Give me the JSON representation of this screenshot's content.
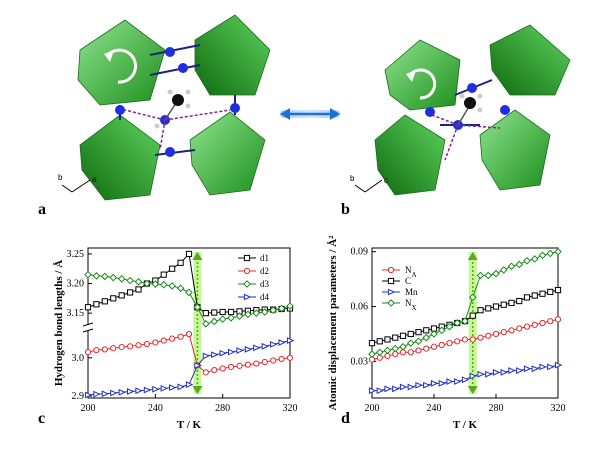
{
  "panels": {
    "a": "a",
    "b": "b",
    "c": "c",
    "d": "d"
  },
  "structure": {
    "axes_a": {
      "b": "b",
      "a": "a"
    },
    "axes_b": {
      "b": "b",
      "c": "c"
    }
  },
  "chart_data": [
    {
      "type": "line",
      "xlabel": "T / K",
      "ylabel": "Hydrogen bond lengths / Å",
      "xlim": [
        200,
        320
      ],
      "xticks": [
        "200",
        "240",
        "280",
        "320"
      ],
      "yticks_upper": [
        "3.15",
        "3.20",
        "3.25"
      ],
      "yticks_lower": [
        "2.9",
        "3.0"
      ],
      "broken_axis": true,
      "series": [
        {
          "name": "d1",
          "color": "#000000",
          "marker": "square",
          "x": [
            200,
            205,
            210,
            215,
            220,
            225,
            230,
            235,
            240,
            245,
            250,
            255,
            260,
            265,
            270,
            275,
            280,
            285,
            290,
            295,
            300,
            305,
            310,
            315,
            320
          ],
          "y": [
            3.16,
            3.165,
            3.17,
            3.175,
            3.18,
            3.185,
            3.19,
            3.2,
            3.205,
            3.215,
            3.225,
            3.235,
            3.25,
            3.16,
            3.15,
            3.151,
            3.152,
            3.152,
            3.153,
            3.154,
            3.155,
            3.156,
            3.156,
            3.157,
            3.158
          ]
        },
        {
          "name": "d2",
          "color": "#e8262a",
          "marker": "circle",
          "x": [
            200,
            205,
            210,
            215,
            220,
            225,
            230,
            235,
            240,
            245,
            250,
            255,
            260,
            265,
            270,
            275,
            280,
            285,
            290,
            295,
            300,
            305,
            310,
            315,
            320
          ],
          "y": [
            3.015,
            3.02,
            3.022,
            3.025,
            3.028,
            3.03,
            3.033,
            3.036,
            3.04,
            3.045,
            3.05,
            3.055,
            3.062,
            2.98,
            2.962,
            2.968,
            2.972,
            2.976,
            2.979,
            2.982,
            2.985,
            2.989,
            2.993,
            2.997,
            3.0
          ]
        },
        {
          "name": "d3",
          "color": "#1a8a1a",
          "marker": "diamond",
          "x": [
            200,
            205,
            210,
            215,
            220,
            225,
            230,
            235,
            240,
            245,
            250,
            255,
            260,
            265,
            270,
            275,
            280,
            285,
            290,
            295,
            300,
            305,
            310,
            315,
            320
          ],
          "y": [
            3.215,
            3.213,
            3.212,
            3.21,
            3.208,
            3.205,
            3.203,
            3.2,
            3.199,
            3.198,
            3.196,
            3.192,
            3.185,
            3.16,
            3.132,
            3.136,
            3.14,
            3.142,
            3.145,
            3.148,
            3.15,
            3.152,
            3.155,
            3.158,
            3.162
          ]
        },
        {
          "name": "d4",
          "color": "#1f2fbf",
          "marker": "triangle",
          "x": [
            200,
            205,
            210,
            215,
            220,
            225,
            230,
            235,
            240,
            245,
            250,
            255,
            260,
            265,
            270,
            275,
            280,
            285,
            290,
            295,
            300,
            305,
            310,
            315,
            320
          ],
          "y": [
            2.903,
            2.905,
            2.906,
            2.908,
            2.91,
            2.912,
            2.914,
            2.916,
            2.918,
            2.92,
            2.922,
            2.924,
            2.93,
            2.98,
            3.005,
            3.008,
            3.012,
            3.015,
            3.019,
            3.022,
            3.026,
            3.03,
            3.035,
            3.04,
            3.045
          ]
        }
      ]
    },
    {
      "type": "line",
      "xlabel": "T / K",
      "ylabel": "Atomic displacement parameters / Å²",
      "xlim": [
        200,
        320
      ],
      "ylim": [
        0.01,
        0.092
      ],
      "xticks": [
        "200",
        "240",
        "280",
        "320"
      ],
      "yticks": [
        "0.03",
        "0.06",
        "0.09"
      ],
      "series": [
        {
          "name": "N_A",
          "color": "#e8262a",
          "marker": "circle",
          "x": [
            200,
            205,
            210,
            215,
            220,
            225,
            230,
            235,
            240,
            245,
            250,
            255,
            260,
            265,
            270,
            275,
            280,
            285,
            290,
            295,
            300,
            305,
            310,
            315,
            320
          ],
          "y": [
            0.031,
            0.032,
            0.033,
            0.034,
            0.035,
            0.035,
            0.036,
            0.037,
            0.038,
            0.039,
            0.04,
            0.041,
            0.042,
            0.042,
            0.043,
            0.044,
            0.045,
            0.046,
            0.047,
            0.048,
            0.049,
            0.05,
            0.051,
            0.052,
            0.053
          ]
        },
        {
          "name": "C",
          "color": "#000000",
          "marker": "square",
          "x": [
            200,
            205,
            210,
            215,
            220,
            225,
            230,
            235,
            240,
            245,
            250,
            255,
            260,
            265,
            270,
            275,
            280,
            285,
            290,
            295,
            300,
            305,
            310,
            315,
            320
          ],
          "y": [
            0.04,
            0.041,
            0.042,
            0.043,
            0.044,
            0.045,
            0.046,
            0.047,
            0.048,
            0.049,
            0.05,
            0.051,
            0.052,
            0.055,
            0.058,
            0.059,
            0.06,
            0.061,
            0.062,
            0.063,
            0.065,
            0.066,
            0.067,
            0.068,
            0.069
          ]
        },
        {
          "name": "Mn",
          "color": "#1f2fbf",
          "marker": "triangle",
          "x": [
            200,
            205,
            210,
            215,
            220,
            225,
            230,
            235,
            240,
            245,
            250,
            255,
            260,
            265,
            270,
            275,
            280,
            285,
            290,
            295,
            300,
            305,
            310,
            315,
            320
          ],
          "y": [
            0.014,
            0.014,
            0.015,
            0.015,
            0.016,
            0.016,
            0.017,
            0.017,
            0.018,
            0.018,
            0.019,
            0.019,
            0.02,
            0.022,
            0.023,
            0.023,
            0.024,
            0.024,
            0.025,
            0.025,
            0.026,
            0.026,
            0.027,
            0.027,
            0.028
          ]
        },
        {
          "name": "N_X",
          "color": "#1a8a1a",
          "marker": "diamond",
          "x": [
            200,
            205,
            210,
            215,
            220,
            225,
            230,
            235,
            240,
            245,
            250,
            255,
            260,
            265,
            270,
            275,
            280,
            285,
            290,
            295,
            300,
            305,
            310,
            315,
            320
          ],
          "y": [
            0.034,
            0.035,
            0.036,
            0.037,
            0.038,
            0.04,
            0.041,
            0.043,
            0.045,
            0.047,
            0.049,
            0.051,
            0.052,
            0.065,
            0.077,
            0.077,
            0.078,
            0.08,
            0.082,
            0.083,
            0.085,
            0.086,
            0.088,
            0.089,
            0.09
          ]
        }
      ]
    }
  ]
}
